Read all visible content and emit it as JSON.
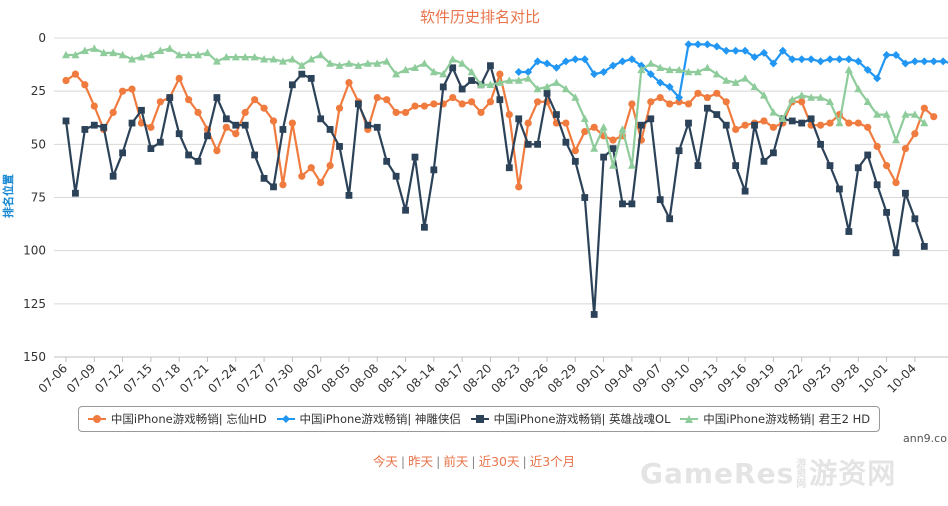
{
  "chart_data": {
    "type": "line",
    "title": "软件历史排名对比",
    "ylabel": "排名位置",
    "ylim": [
      0,
      150
    ],
    "y_inverted": true,
    "y_ticks": [
      0,
      25,
      50,
      75,
      100,
      125,
      150
    ],
    "x_tick_labels": [
      "07-06",
      "07-09",
      "07-12",
      "07-15",
      "07-18",
      "07-21",
      "07-24",
      "07-27",
      "07-30",
      "08-02",
      "08-05",
      "08-08",
      "08-11",
      "08-14",
      "08-17",
      "08-20",
      "08-23",
      "08-26",
      "08-29",
      "09-01",
      "09-04",
      "09-07",
      "09-10",
      "09-13",
      "09-16",
      "09-19",
      "09-22",
      "09-25",
      "09-28",
      "10-01",
      "10-04"
    ],
    "grid": true,
    "legend_position": "bottom",
    "series": [
      {
        "name": "中国iPhone游戏畅销| 忘仙HD",
        "color": "#f07b3f",
        "marker": "circle",
        "start_day": 0,
        "values": [
          20,
          17,
          22,
          32,
          43,
          35,
          25,
          24,
          40,
          42,
          30,
          28,
          19,
          29,
          35,
          43,
          53,
          42,
          45,
          35,
          29,
          33,
          39,
          69,
          40,
          65,
          61,
          68,
          60,
          33,
          21,
          30,
          43,
          28,
          29,
          35,
          35,
          32,
          32,
          31,
          31,
          28,
          31,
          30,
          35,
          30,
          17,
          36,
          70,
          40,
          30,
          30,
          40,
          40,
          53,
          44,
          42,
          46,
          48,
          46,
          31,
          48,
          30,
          28,
          31,
          30,
          31,
          26,
          28,
          26,
          30,
          43,
          41,
          40,
          39,
          42,
          40,
          30,
          30,
          41,
          41,
          40,
          36,
          40,
          40,
          42,
          51,
          60,
          68,
          52,
          45,
          33,
          37
        ]
      },
      {
        "name": "中国iPhone游戏畅销| 神雕侠侣",
        "color": "#2196f3",
        "marker": "diamond",
        "start_day": 48,
        "values": [
          16,
          16,
          11,
          12,
          14,
          11,
          10,
          10,
          17,
          16,
          13,
          11,
          10,
          13,
          17,
          21,
          23,
          28,
          3,
          3,
          3,
          4,
          6,
          6,
          6,
          9,
          7,
          12,
          6,
          10,
          10,
          10,
          11,
          10,
          10,
          10,
          11,
          15,
          19,
          8,
          8,
          12,
          11,
          11,
          11,
          11,
          12
        ]
      },
      {
        "name": "中国iPhone游戏畅销| 英雄战魂OL",
        "color": "#2c4259",
        "marker": "square",
        "start_day": 0,
        "values": [
          39,
          73,
          43,
          41,
          42,
          65,
          54,
          40,
          34,
          52,
          49,
          28,
          45,
          55,
          58,
          46,
          28,
          38,
          41,
          41,
          55,
          66,
          70,
          43,
          22,
          17,
          19,
          38,
          43,
          51,
          74,
          31,
          41,
          42,
          58,
          65,
          81,
          56,
          89,
          62,
          23,
          14,
          24,
          20,
          22,
          13,
          29,
          61,
          38,
          50,
          50,
          26,
          36,
          49,
          58,
          75,
          130,
          56,
          52,
          78,
          78,
          41,
          38,
          76,
          85,
          53,
          40,
          60,
          33,
          36,
          41,
          60,
          72,
          41,
          58,
          54,
          38,
          39,
          40,
          38,
          50,
          60,
          71,
          91,
          61,
          55,
          69,
          82,
          101,
          73,
          85,
          98
        ]
      },
      {
        "name": "中国iPhone游戏畅销| 君王2 HD",
        "color": "#8fcc9b",
        "marker": "triangle",
        "start_day": 0,
        "values": [
          8,
          8,
          6,
          5,
          7,
          7,
          8,
          10,
          9,
          8,
          6,
          5,
          8,
          8,
          8,
          7,
          11,
          9,
          9,
          9,
          9,
          10,
          10,
          11,
          10,
          13,
          10,
          8,
          12,
          13,
          12,
          13,
          12,
          12,
          11,
          17,
          15,
          14,
          12,
          16,
          17,
          10,
          12,
          16,
          22,
          22,
          21,
          20,
          20,
          19,
          24,
          23,
          21,
          24,
          28,
          38,
          52,
          42,
          60,
          43,
          60,
          15,
          12,
          14,
          15,
          15,
          16,
          16,
          14,
          17,
          20,
          21,
          19,
          23,
          27,
          35,
          38,
          29,
          27,
          28,
          28,
          30,
          40,
          15,
          24,
          30,
          36,
          36,
          48,
          36,
          36,
          40
        ]
      }
    ]
  },
  "legend": [
    {
      "label": "中国iPhone游戏畅销| 忘仙HD"
    },
    {
      "label": "中国iPhone游戏畅销| 神雕侠侣"
    },
    {
      "label": "中国iPhone游戏畅销| 英雄战魂OL"
    },
    {
      "label": "中国iPhone游戏畅销| 君王2 HD"
    }
  ],
  "credit": "ann9.com",
  "links": {
    "today": "今天",
    "yesterday": "昨天",
    "day_before": "前天",
    "last30": "近30天",
    "last3m": "近3个月",
    "separator": "|"
  },
  "watermark": {
    "left": "GameRes",
    "mid": "游资网",
    "right": "游资网"
  }
}
